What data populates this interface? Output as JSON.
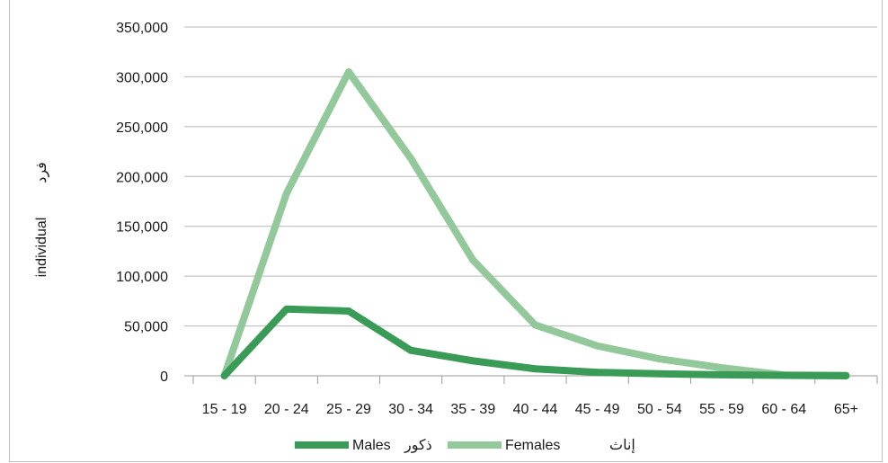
{
  "chart_data": {
    "type": "line",
    "categories": [
      "15 - 19",
      "20 - 24",
      "25 - 29",
      "30 - 34",
      "35 - 39",
      "40 - 44",
      "45 - 49",
      "50 - 54",
      "55 - 59",
      "60 - 64",
      "65+"
    ],
    "series": [
      {
        "name": "Males",
        "name_ar": "ذكور",
        "color": "#3a9b57",
        "values": [
          0,
          67000,
          65000,
          25500,
          15000,
          7000,
          3500,
          2000,
          1000,
          500,
          0
        ]
      },
      {
        "name": "Females",
        "name_ar": "إناث",
        "color": "#93c99a",
        "values": [
          0,
          183000,
          305000,
          218000,
          116000,
          51000,
          30000,
          17000,
          8000,
          800,
          500
        ]
      }
    ],
    "yticks": [
      "0",
      "50,000",
      "100,000",
      "150,000",
      "200,000",
      "250,000",
      "300,000",
      "350,000"
    ],
    "ylim": [
      0,
      350000
    ],
    "ylabel_ar": "فرد",
    "ylabel": "individual",
    "grid": true,
    "legend": "bottom"
  }
}
